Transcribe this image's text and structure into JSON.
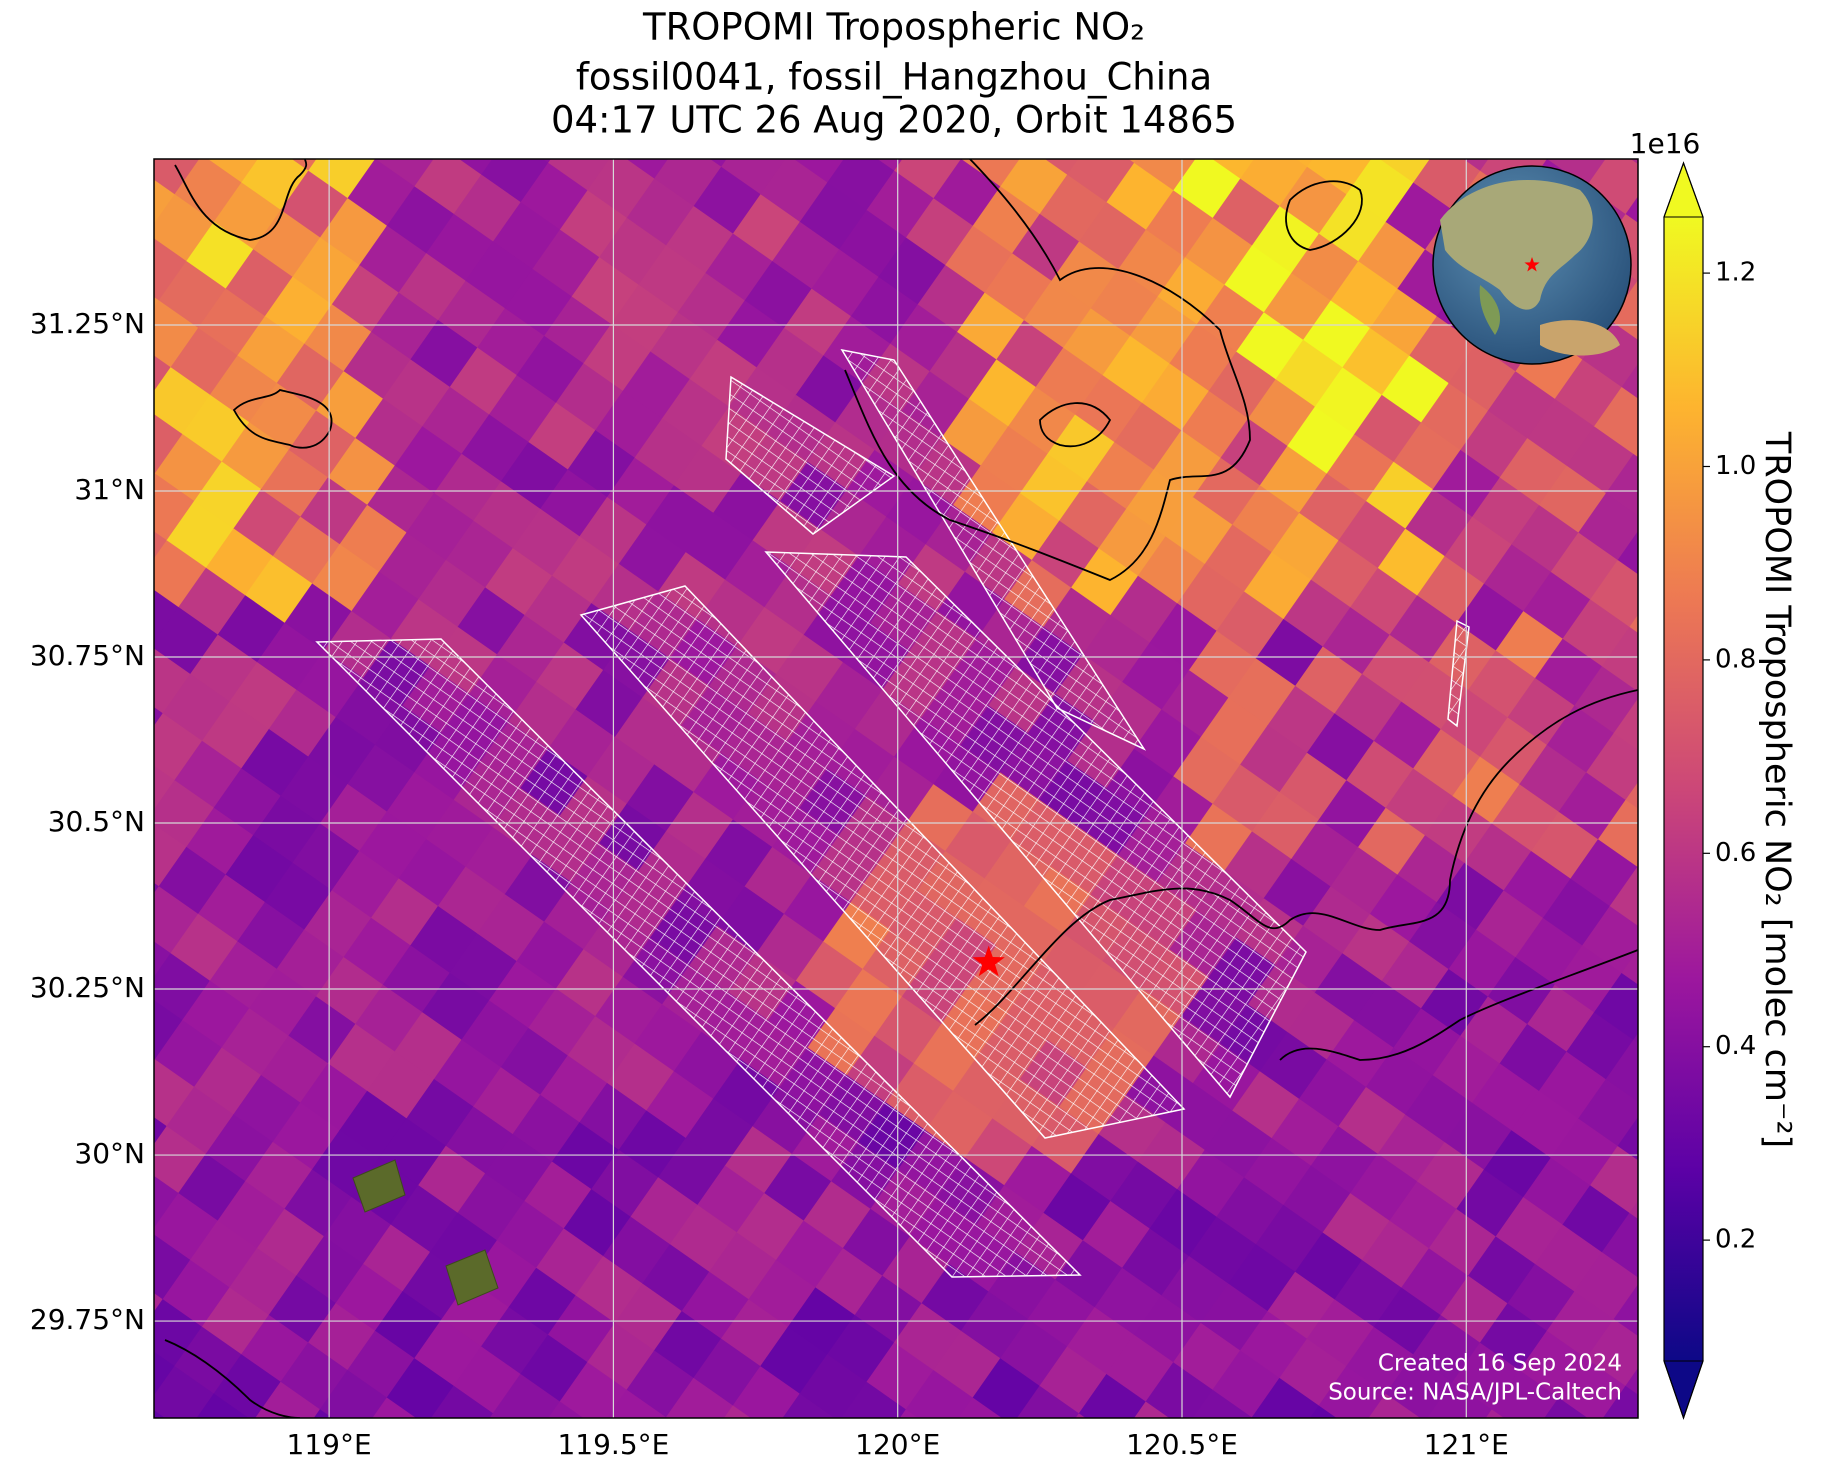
{
  "title": {
    "line1": "TROPOMI Tropospheric NO₂",
    "line2": "fossil0041, fossil_Hangzhou_China",
    "line3": "04:17 UTC 26 Aug 2020, Orbit 14865"
  },
  "map": {
    "xlim": [
      118.692,
      121.302
    ],
    "ylim": [
      29.604,
      31.5
    ],
    "xticks": [
      {
        "value": 119,
        "label": "119°E"
      },
      {
        "value": 119.5,
        "label": "119.5°E"
      },
      {
        "value": 120,
        "label": "120°E"
      },
      {
        "value": 120.5,
        "label": "120.5°E"
      },
      {
        "value": 121,
        "label": "121°E"
      }
    ],
    "yticks": [
      {
        "value": 29.75,
        "label": "29.75°N"
      },
      {
        "value": 30,
        "label": "30°N"
      },
      {
        "value": 30.25,
        "label": "30.25°N"
      },
      {
        "value": 30.5,
        "label": "30.5°N"
      },
      {
        "value": 30.75,
        "label": "30.75°N"
      },
      {
        "value": 31,
        "label": "31°N"
      },
      {
        "value": 31.25,
        "label": "31.25°N"
      }
    ],
    "grid": true,
    "site": {
      "lon": 120.16,
      "lat": 30.29,
      "color": "#ff0000"
    }
  },
  "colorbar": {
    "label": "TROPOMI Tropospheric NO₂ [molec cm⁻²]",
    "multiplier": "1e16",
    "lim": [
      0.075,
      1.258
    ],
    "ticks": [
      0.2,
      0.4,
      0.6,
      0.8,
      {
        "value": 1,
        "label": "1.0"
      },
      1.2
    ],
    "colormap": [
      "#0d0887",
      "#5c01a6",
      "#9c179e",
      "#cc4778",
      "#ed7953",
      "#fdb42f",
      "#f0f921"
    ]
  },
  "annotations": {
    "created": "Created 16 Sep 2024",
    "source": "Source: NASA/JPL-Caltech"
  }
}
